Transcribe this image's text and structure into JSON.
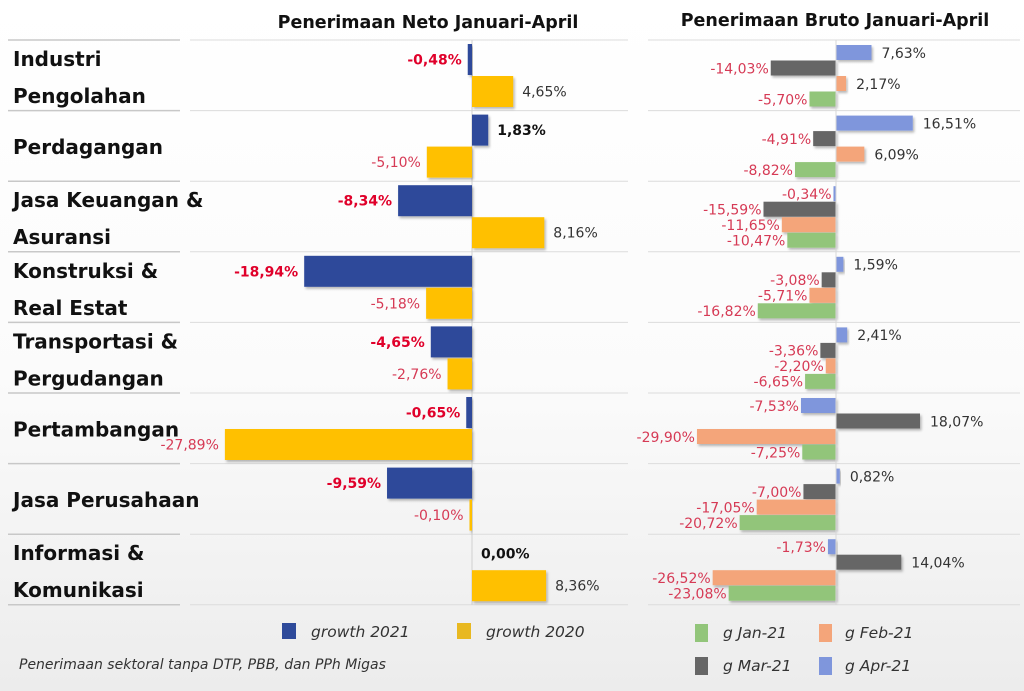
{
  "chart_data": [
    {
      "type": "bar",
      "orientation": "horizontal",
      "title": "Penerimaan Neto Januari-April",
      "categories": [
        "Industri Pengolahan",
        "Perdagangan",
        "Jasa Keuangan & Asuransi",
        "Konstruksi & Real Estat",
        "Transportasi & Pergudangan",
        "Pertambangan",
        "Jasa Perusahaan",
        "Informasi & Komunikasi"
      ],
      "category_lines": [
        [
          "Industri",
          "Pengolahan"
        ],
        [
          "Perdagangan"
        ],
        [
          "Jasa Keuangan &",
          "Asuransi"
        ],
        [
          "Konstruksi &",
          "Real Estat"
        ],
        [
          "Transportasi &",
          "Pergudangan"
        ],
        [
          "Pertambangan"
        ],
        [
          "Jasa Perusahaan"
        ],
        [
          "Informasi &",
          "Komunikasi"
        ]
      ],
      "series": [
        {
          "name": "growth 2021",
          "color": "#2E4A9A",
          "label_style": "bold",
          "values": [
            -0.48,
            1.83,
            -8.34,
            -18.94,
            -4.65,
            -0.65,
            -9.59,
            0.0
          ],
          "labels": [
            "-0,48%",
            "1,83%",
            "-8,34%",
            "-18,94%",
            "-4,65%",
            "-0,65%",
            "-9,59%",
            "0,00%"
          ]
        },
        {
          "name": "growth 2020",
          "color": "#FFC000",
          "label_style": "normal",
          "values": [
            4.65,
            -5.1,
            8.16,
            -5.18,
            -2.76,
            -27.89,
            -0.1,
            8.36
          ],
          "labels": [
            "4,65%",
            "-5,10%",
            "8,16%",
            "-5,18%",
            "-2,76%",
            "-27,89%",
            "-0,10%",
            "8,36%"
          ]
        }
      ],
      "xlim": [
        -28,
        8.5
      ],
      "unit": "%",
      "legend": "bottom",
      "grid": false
    },
    {
      "type": "bar",
      "orientation": "horizontal",
      "title": "Penerimaan Bruto Januari-April",
      "categories": [
        "Industri Pengolahan",
        "Perdagangan",
        "Jasa Keuangan & Asuransi",
        "Konstruksi & Real Estat",
        "Transportasi & Pergudangan",
        "Pertambangan",
        "Jasa Perusahaan",
        "Informasi & Komunikasi"
      ],
      "series": [
        {
          "name": "g Apr-21",
          "color": "#7F96DC",
          "values": [
            7.63,
            16.51,
            -0.34,
            1.59,
            2.41,
            -7.53,
            0.82,
            -1.73
          ],
          "labels": [
            "7,63%",
            "16,51%",
            "-0,34%",
            "1,59%",
            "2,41%",
            "-7,53%",
            "0,82%",
            "-1,73%"
          ]
        },
        {
          "name": "g Mar-21",
          "color": "#666666",
          "values": [
            -14.03,
            -4.91,
            -15.59,
            -3.08,
            -3.36,
            18.07,
            -7.0,
            14.04
          ],
          "labels": [
            "-14,03%",
            "-4,91%",
            "-15,59%",
            "-3,08%",
            "-3,36%",
            "18,07%",
            "-7,00%",
            "14,04%"
          ]
        },
        {
          "name": "g Feb-21",
          "color": "#F4A57A",
          "values": [
            2.17,
            6.09,
            -11.65,
            -5.71,
            -2.2,
            -29.9,
            -17.05,
            -26.52
          ],
          "labels": [
            "2,17%",
            "6,09%",
            "-11,65%",
            "-5,71%",
            "-2,20%",
            "-29,90%",
            "-17,05%",
            "-26,52%"
          ]
        },
        {
          "name": "g Jan-21",
          "color": "#92C57A",
          "values": [
            -5.7,
            -8.82,
            -10.47,
            -16.82,
            -6.65,
            -7.25,
            -20.72,
            -23.08
          ],
          "labels": [
            "-5,70%",
            "-8,82%",
            "-10,47%",
            "-16,82%",
            "-6,65%",
            "-7,25%",
            "-20,72%",
            "-23,08%"
          ]
        }
      ],
      "legend_order": [
        "g Jan-21",
        "g Feb-21",
        "g Mar-21",
        "g Apr-21"
      ],
      "xlim": [
        -30,
        18.5
      ],
      "unit": "%",
      "legend": "bottom",
      "grid": false
    }
  ],
  "colors": {
    "negative_label": "#E0002A",
    "negative_label_soft": "#D63A55",
    "positive_label": "#333333"
  },
  "footnote": "Penerimaan sektoral tanpa DTP, PBB, dan PPh Migas"
}
